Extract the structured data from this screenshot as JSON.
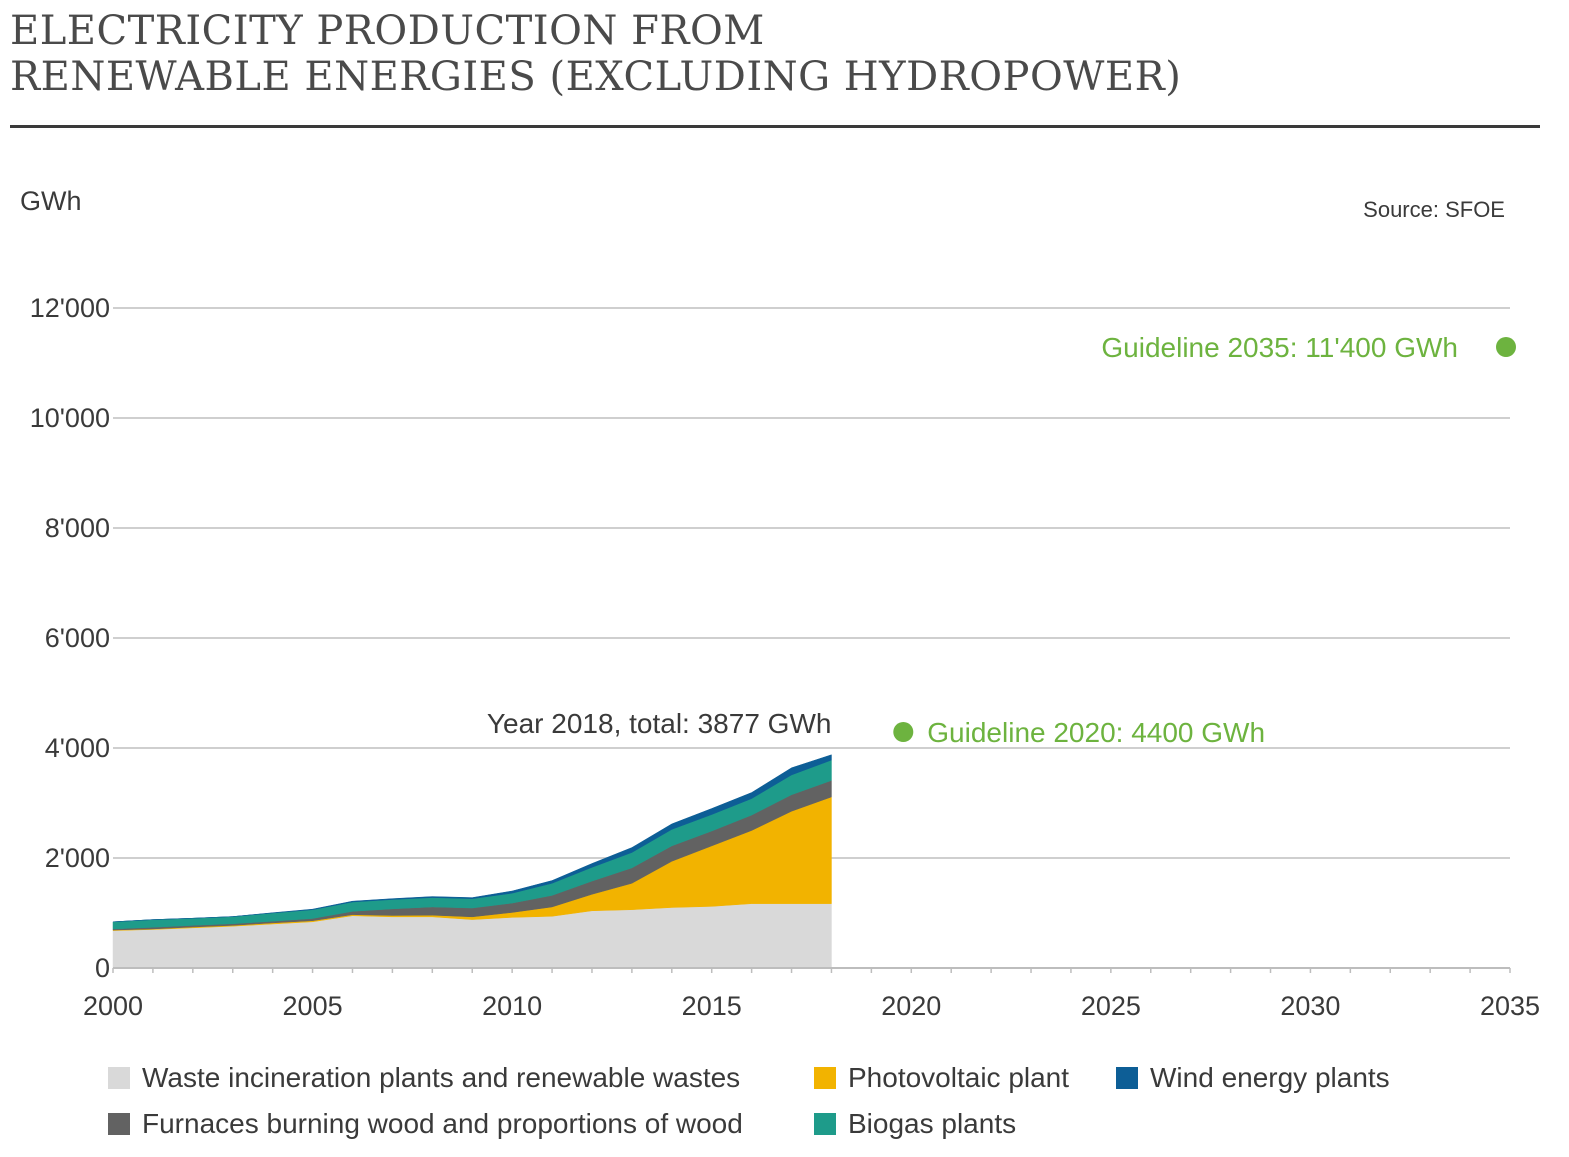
{
  "title": {
    "line1": "ELECTRICITY PRODUCTION FROM",
    "line2": "RENEWABLE ENERGIES (EXCLUDING HYDROPOWER)"
  },
  "unit": "GWh",
  "source": "Source: SFOE",
  "chart_data": {
    "type": "area",
    "stacked": true,
    "title": "ELECTRICITY PRODUCTION FROM RENEWABLE ENERGIES (EXCLUDING HYDROPOWER)",
    "ylabel": "GWh",
    "xlim": [
      2000,
      2035
    ],
    "ylim": [
      0,
      12000
    ],
    "x_ticks": [
      2000,
      2005,
      2010,
      2015,
      2020,
      2025,
      2030,
      2035
    ],
    "x_tick_labels": [
      "2000",
      "2005",
      "2010",
      "2015",
      "2020",
      "2025",
      "2030",
      "2035"
    ],
    "y_ticks": [
      0,
      2000,
      4000,
      6000,
      8000,
      10000,
      12000
    ],
    "y_tick_labels": [
      "0",
      "2'000",
      "4'000",
      "6'000",
      "8'000",
      "10'000",
      "12'000"
    ],
    "grid": true,
    "x": [
      2000,
      2001,
      2002,
      2003,
      2004,
      2005,
      2006,
      2007,
      2008,
      2009,
      2010,
      2011,
      2012,
      2013,
      2014,
      2015,
      2016,
      2017,
      2018
    ],
    "series": [
      {
        "name": "Waste incineration plants and renewable wastes",
        "color": "#d9d9d9",
        "values": [
          680,
          700,
          730,
          760,
          800,
          840,
          950,
          930,
          930,
          880,
          920,
          940,
          1040,
          1060,
          1100,
          1120,
          1170,
          1170,
          1170
        ]
      },
      {
        "name": "Photovoltaic plant",
        "color": "#f2b300",
        "values": [
          10,
          10,
          15,
          15,
          20,
          20,
          20,
          25,
          30,
          50,
          90,
          170,
          300,
          480,
          840,
          1100,
          1330,
          1680,
          1940
        ]
      },
      {
        "name": "Furnaces burning wood and proportions of wood",
        "color": "#626262",
        "values": [
          20,
          30,
          30,
          30,
          30,
          40,
          60,
          120,
          150,
          160,
          170,
          210,
          240,
          280,
          280,
          270,
          280,
          300,
          300
        ]
      },
      {
        "name": "Biogas plants",
        "color": "#1e9b8a",
        "values": [
          130,
          140,
          130,
          130,
          150,
          160,
          170,
          170,
          170,
          170,
          180,
          220,
          250,
          280,
          300,
          300,
          300,
          360,
          370
        ]
      },
      {
        "name": "Wind energy plants",
        "color": "#0d5e96",
        "values": [
          0,
          0,
          0,
          0,
          5,
          10,
          15,
          16,
          19,
          20,
          40,
          50,
          70,
          90,
          100,
          110,
          110,
          130,
          97
        ]
      }
    ],
    "annotations": {
      "total_label": "Year 2018, total: 3877 GWh",
      "guideline_2020": {
        "label": "Guideline 2020: 4400 GWh",
        "x": 2019.9,
        "y": 4400,
        "color": "#6db33f"
      },
      "guideline_2035": {
        "label": "Guideline 2035: 11'400 GWh",
        "x": 2035,
        "y": 11400,
        "color": "#6db33f"
      }
    },
    "legend_position": "bottom"
  },
  "legend": {
    "items": [
      {
        "label": "Waste incineration plants and renewable wastes",
        "color": "#d9d9d9"
      },
      {
        "label": "Photovoltaic plant",
        "color": "#f2b300"
      },
      {
        "label": "Wind energy plants",
        "color": "#0d5e96"
      },
      {
        "label": "Furnaces burning wood and proportions of wood",
        "color": "#626262"
      },
      {
        "label": "Biogas plants",
        "color": "#1e9b8a"
      }
    ]
  }
}
